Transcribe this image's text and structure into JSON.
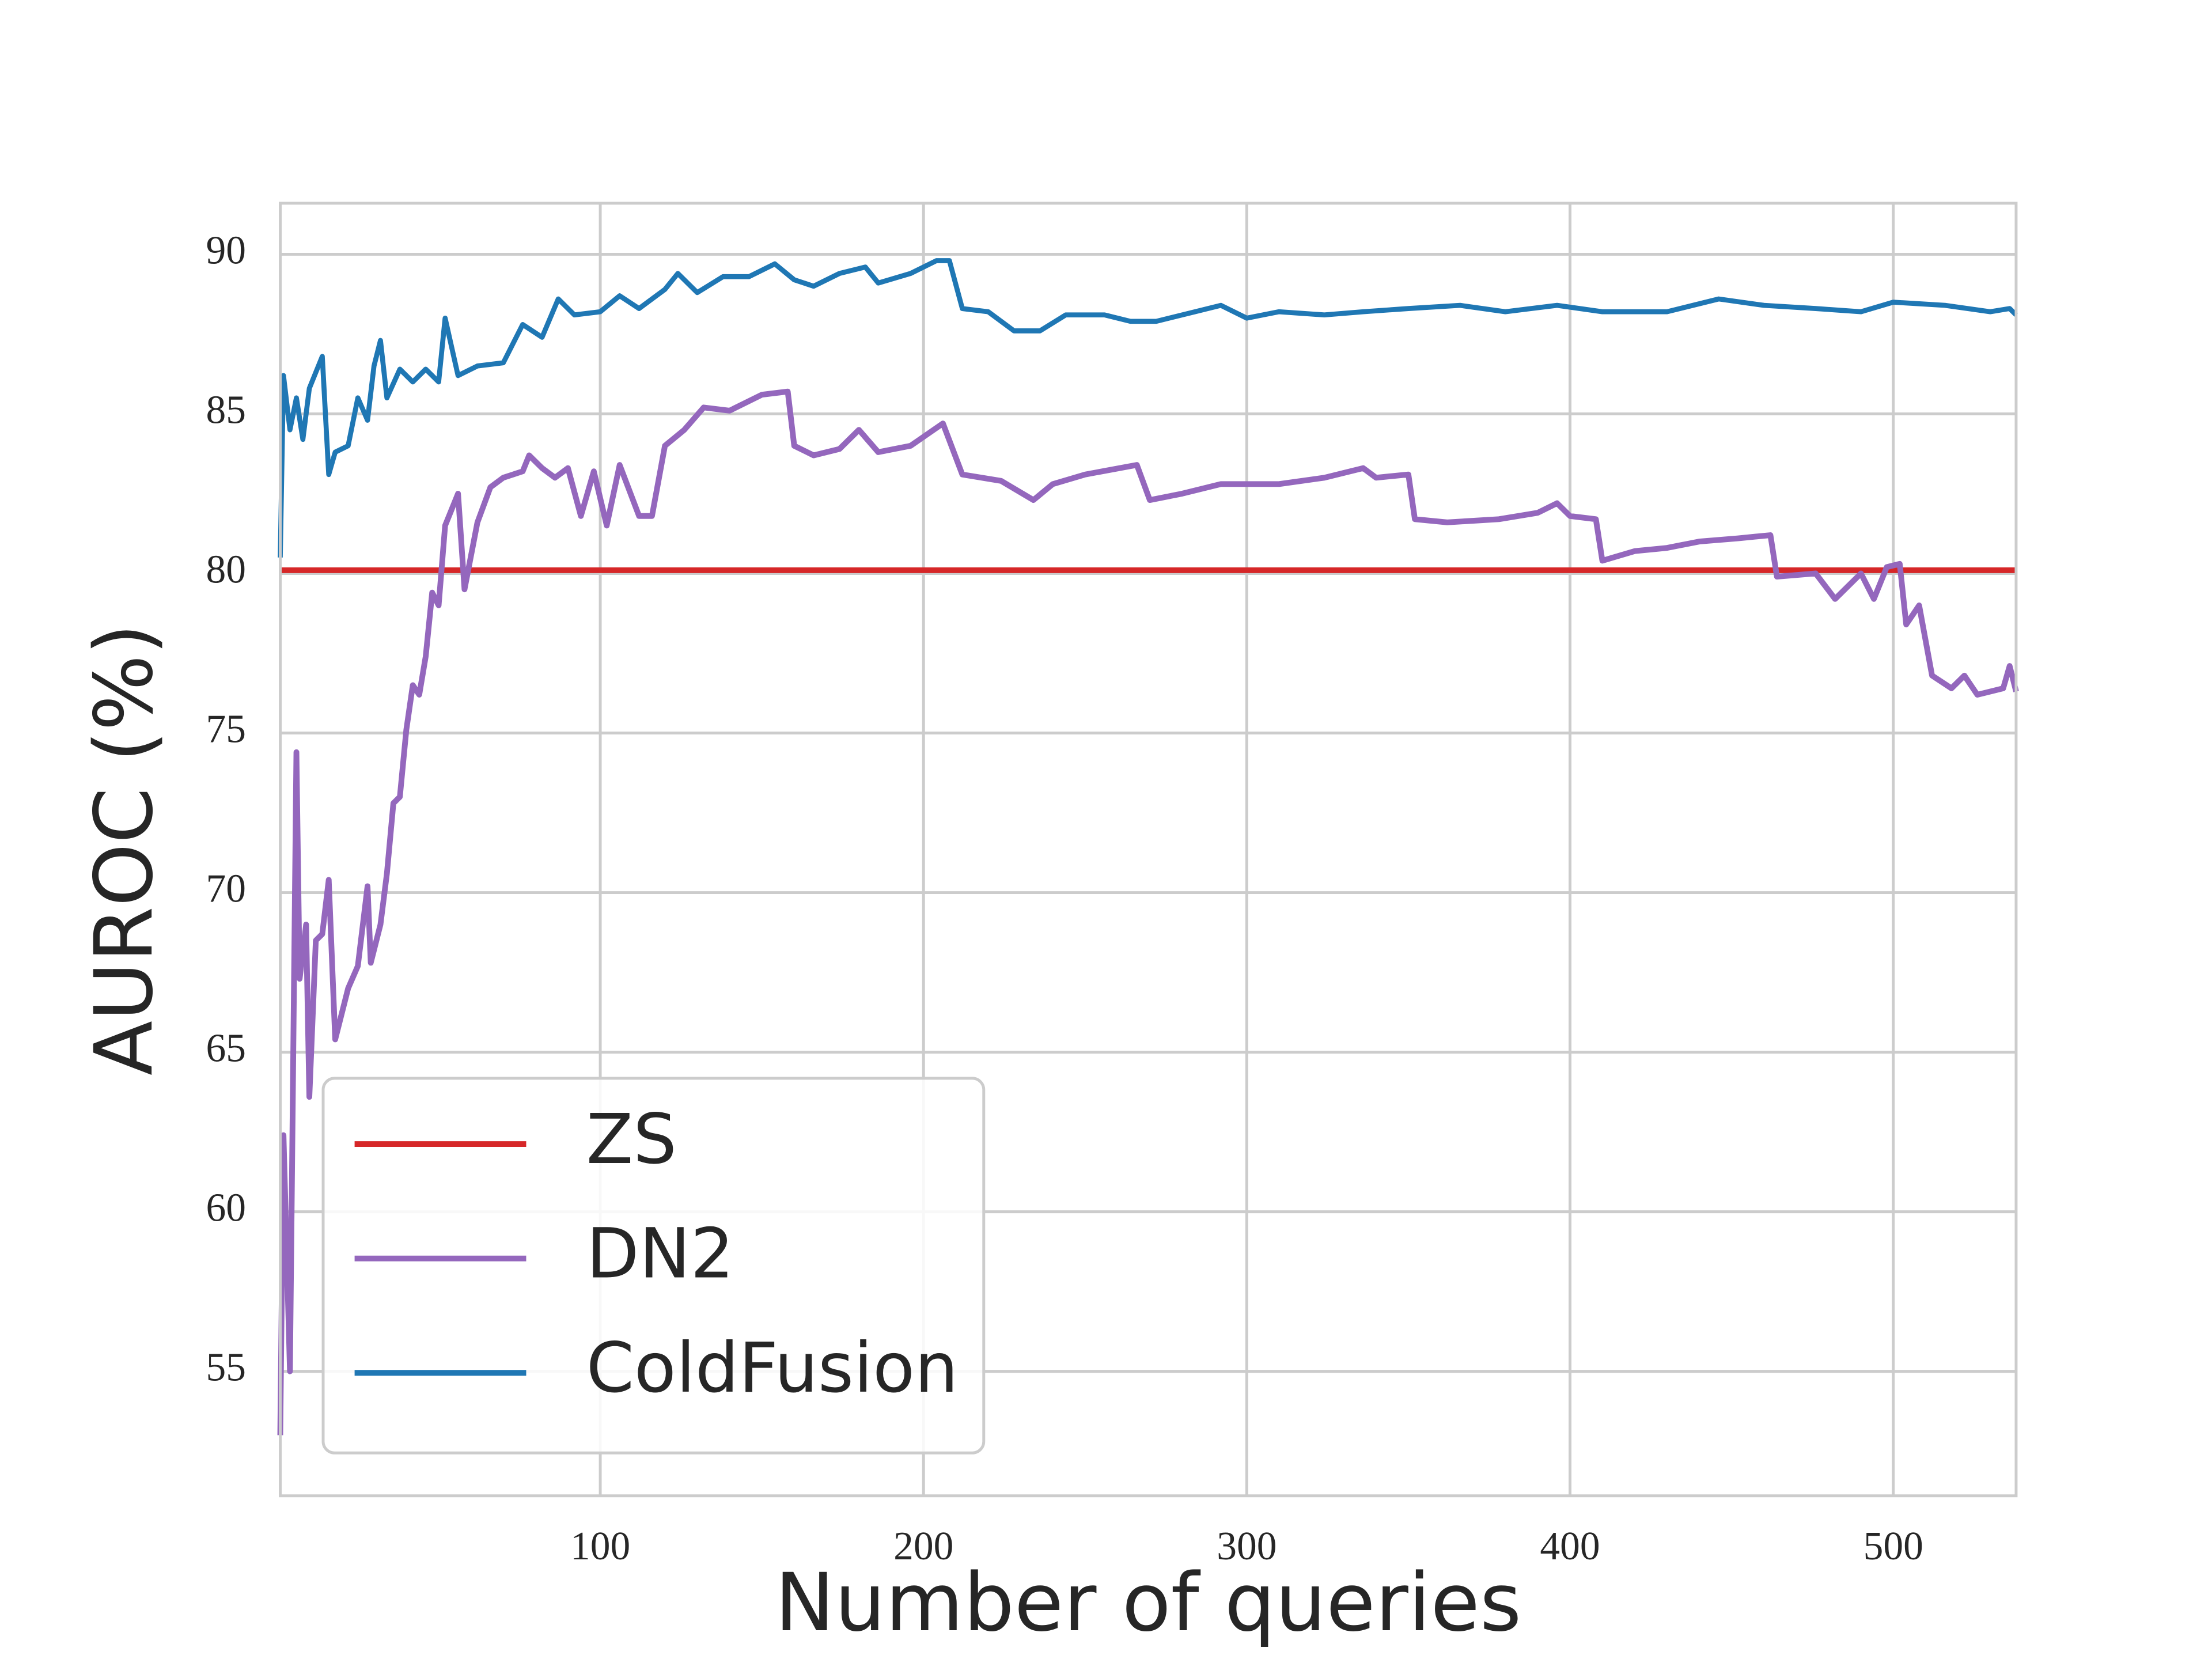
{
  "chart_data": {
    "type": "line",
    "x_label": "Number of queries",
    "y_label": "AUROC (%)",
    "xlim": [
      1,
      538
    ],
    "ylim": [
      51.1,
      91.6
    ],
    "xticks": [
      100,
      200,
      300,
      400,
      500
    ],
    "yticks": [
      55,
      60,
      65,
      70,
      75,
      80,
      85,
      90
    ],
    "grid": true,
    "legend": "lower left",
    "series": [
      {
        "name": "ZS",
        "color": "#d62728",
        "x": [
          1,
          538
        ],
        "values": [
          80.1,
          80.1
        ]
      },
      {
        "name": "DN2",
        "color": "#9467bd",
        "x": [
          1,
          2,
          4,
          6,
          7,
          9,
          10,
          12,
          14,
          16,
          18,
          22,
          25,
          28,
          29,
          32,
          34,
          36,
          38,
          40,
          42,
          44,
          46,
          48,
          50,
          52,
          56,
          58,
          62,
          66,
          70,
          76,
          78,
          82,
          86,
          90,
          94,
          98,
          102,
          106,
          112,
          116,
          120,
          126,
          132,
          140,
          150,
          158,
          160,
          166,
          174,
          180,
          186,
          196,
          206,
          212,
          224,
          234,
          240,
          250,
          266,
          270,
          280,
          292,
          310,
          324,
          336,
          340,
          350,
          352,
          362,
          378,
          390,
          396,
          400,
          408,
          410,
          420,
          430,
          440,
          452,
          462,
          464,
          476,
          482,
          490,
          494,
          498,
          502,
          504,
          508,
          512,
          518,
          522,
          526,
          534,
          536,
          538
        ],
        "values": [
          53.0,
          62.4,
          55.0,
          74.4,
          67.3,
          69.0,
          63.6,
          68.5,
          68.7,
          70.4,
          65.4,
          67.0,
          67.7,
          70.2,
          67.8,
          69.0,
          70.6,
          72.8,
          73.0,
          75.1,
          76.5,
          76.2,
          77.4,
          79.4,
          79.0,
          81.5,
          82.5,
          79.5,
          81.6,
          82.7,
          83.0,
          83.2,
          83.7,
          83.3,
          83.0,
          83.3,
          81.8,
          83.2,
          81.5,
          83.4,
          81.8,
          81.8,
          84.0,
          84.5,
          85.2,
          85.1,
          85.6,
          85.7,
          84.0,
          83.7,
          83.9,
          84.5,
          83.8,
          84.0,
          84.7,
          83.1,
          82.9,
          82.3,
          82.8,
          83.1,
          83.4,
          82.3,
          82.5,
          82.8,
          82.8,
          83.0,
          83.3,
          83.0,
          83.1,
          81.7,
          81.6,
          81.7,
          81.9,
          82.2,
          81.8,
          81.7,
          80.4,
          80.7,
          80.8,
          81.0,
          81.1,
          81.2,
          79.9,
          80.0,
          79.2,
          80.0,
          79.2,
          80.2,
          80.3,
          78.4,
          79.0,
          76.8,
          76.4,
          76.8,
          76.2,
          76.4,
          77.1,
          76.3
        ]
      },
      {
        "name": "ColdFusion",
        "color": "#1f77b4",
        "x": [
          1,
          2,
          4,
          6,
          8,
          10,
          14,
          16,
          18,
          22,
          25,
          28,
          30,
          32,
          34,
          38,
          42,
          46,
          50,
          52,
          56,
          62,
          70,
          76,
          82,
          87,
          92,
          100,
          106,
          112,
          120,
          124,
          130,
          138,
          146,
          154,
          160,
          166,
          174,
          182,
          186,
          196,
          204,
          208,
          212,
          220,
          228,
          236,
          244,
          256,
          264,
          272,
          284,
          292,
          300,
          310,
          324,
          336,
          350,
          366,
          380,
          396,
          410,
          430,
          446,
          460,
          476,
          490,
          500,
          516,
          530,
          536,
          538
        ],
        "values": [
          80.5,
          86.2,
          84.5,
          85.5,
          84.2,
          85.8,
          86.8,
          83.1,
          83.8,
          84.0,
          85.5,
          84.8,
          86.5,
          87.3,
          85.5,
          86.4,
          86.0,
          86.4,
          86.0,
          88.0,
          86.2,
          86.5,
          86.6,
          87.8,
          87.4,
          88.6,
          88.1,
          88.2,
          88.7,
          88.3,
          88.9,
          89.4,
          88.8,
          89.3,
          89.3,
          89.7,
          89.2,
          89.0,
          89.4,
          89.6,
          89.1,
          89.4,
          89.8,
          89.8,
          88.3,
          88.2,
          87.6,
          87.6,
          88.1,
          88.1,
          87.9,
          87.9,
          88.2,
          88.4,
          88.0,
          88.2,
          88.1,
          88.2,
          88.3,
          88.4,
          88.2,
          88.4,
          88.2,
          88.2,
          88.6,
          88.4,
          88.3,
          88.2,
          88.5,
          88.4,
          88.2,
          88.3,
          88.1
        ]
      }
    ]
  }
}
